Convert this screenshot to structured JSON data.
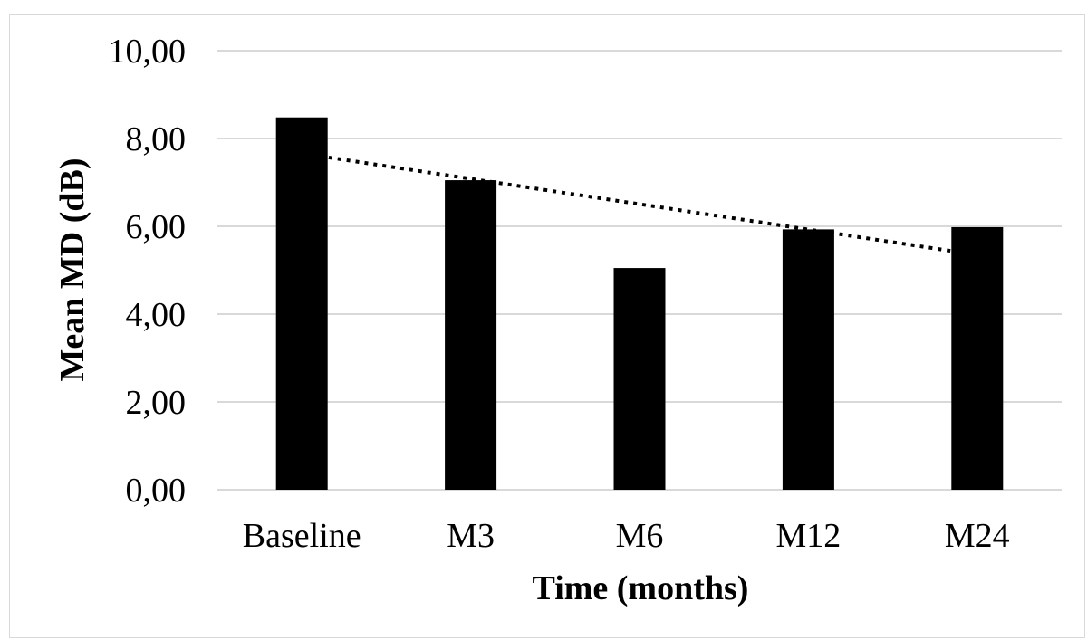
{
  "chart_data": {
    "type": "bar",
    "title": "",
    "xlabel": "Time (months)",
    "ylabel": "Mean MD (dB)",
    "categories": [
      "Baseline",
      "M3",
      "M6",
      "M12",
      "M24"
    ],
    "series": [
      {
        "name": "",
        "values": [
          8.48,
          7.05,
          5.05,
          5.93,
          5.98
        ]
      }
    ],
    "yticks": [
      "0,00",
      "2,00",
      "4,00",
      "6,00",
      "8,00",
      "10,00"
    ],
    "ylim": [
      0,
      10
    ],
    "grid": true,
    "legend": "none",
    "trendline": {
      "type": "linear",
      "style": "dotted",
      "start": 7.66,
      "end": 5.35
    },
    "colors": {
      "bar": "#000000",
      "grid": "#d9d9d9",
      "trend": "#000000"
    }
  }
}
